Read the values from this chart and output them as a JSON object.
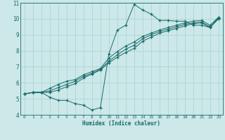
{
  "xlabel": "Humidex (Indice chaleur)",
  "bg_color": "#cce8e8",
  "line_color": "#1a6b6b",
  "grid_color": "#aad0d0",
  "marker": "+",
  "xlim": [
    -0.5,
    23.5
  ],
  "ylim": [
    4,
    11
  ],
  "yticks": [
    4,
    5,
    6,
    7,
    8,
    9,
    10,
    11
  ],
  "xticks": [
    0,
    1,
    2,
    3,
    4,
    5,
    6,
    7,
    8,
    9,
    10,
    11,
    12,
    13,
    14,
    15,
    16,
    17,
    18,
    19,
    20,
    21,
    22,
    23
  ],
  "series": [
    {
      "x": [
        0,
        1,
        2,
        3,
        4,
        5,
        6,
        7,
        8,
        9,
        10,
        11,
        12,
        13,
        14,
        15,
        16,
        17,
        18,
        19,
        20,
        21,
        22,
        23
      ],
      "y": [
        5.3,
        5.4,
        5.4,
        5.1,
        4.9,
        4.9,
        4.7,
        4.6,
        4.3,
        4.45,
        7.8,
        9.3,
        9.6,
        10.9,
        10.55,
        10.3,
        9.9,
        9.9,
        9.85,
        9.85,
        9.6,
        9.6,
        9.45,
        10.1
      ]
    },
    {
      "x": [
        0,
        1,
        2,
        3,
        4,
        5,
        6,
        7,
        8,
        9,
        10,
        11,
        12,
        13,
        14,
        15,
        16,
        17,
        18,
        19,
        20,
        21,
        22,
        23
      ],
      "y": [
        5.3,
        5.4,
        5.4,
        5.65,
        5.9,
        6.1,
        6.2,
        6.5,
        6.7,
        6.9,
        7.55,
        7.95,
        8.3,
        8.55,
        8.9,
        9.1,
        9.3,
        9.45,
        9.6,
        9.75,
        9.85,
        9.9,
        9.6,
        10.1
      ]
    },
    {
      "x": [
        0,
        1,
        2,
        3,
        4,
        5,
        6,
        7,
        8,
        9,
        10,
        11,
        12,
        13,
        14,
        15,
        16,
        17,
        18,
        19,
        20,
        21,
        22,
        23
      ],
      "y": [
        5.3,
        5.4,
        5.4,
        5.5,
        5.7,
        5.9,
        6.1,
        6.4,
        6.6,
        6.85,
        7.35,
        7.75,
        8.1,
        8.35,
        8.75,
        9.0,
        9.2,
        9.35,
        9.5,
        9.65,
        9.75,
        9.8,
        9.5,
        10.05
      ]
    },
    {
      "x": [
        0,
        1,
        2,
        3,
        4,
        5,
        6,
        7,
        8,
        9,
        10,
        11,
        12,
        13,
        14,
        15,
        16,
        17,
        18,
        19,
        20,
        21,
        22,
        23
      ],
      "y": [
        5.3,
        5.4,
        5.4,
        5.4,
        5.55,
        5.75,
        5.95,
        6.3,
        6.55,
        6.8,
        7.25,
        7.6,
        7.9,
        8.15,
        8.6,
        8.85,
        9.1,
        9.25,
        9.4,
        9.55,
        9.7,
        9.75,
        9.45,
        10.0
      ]
    }
  ]
}
